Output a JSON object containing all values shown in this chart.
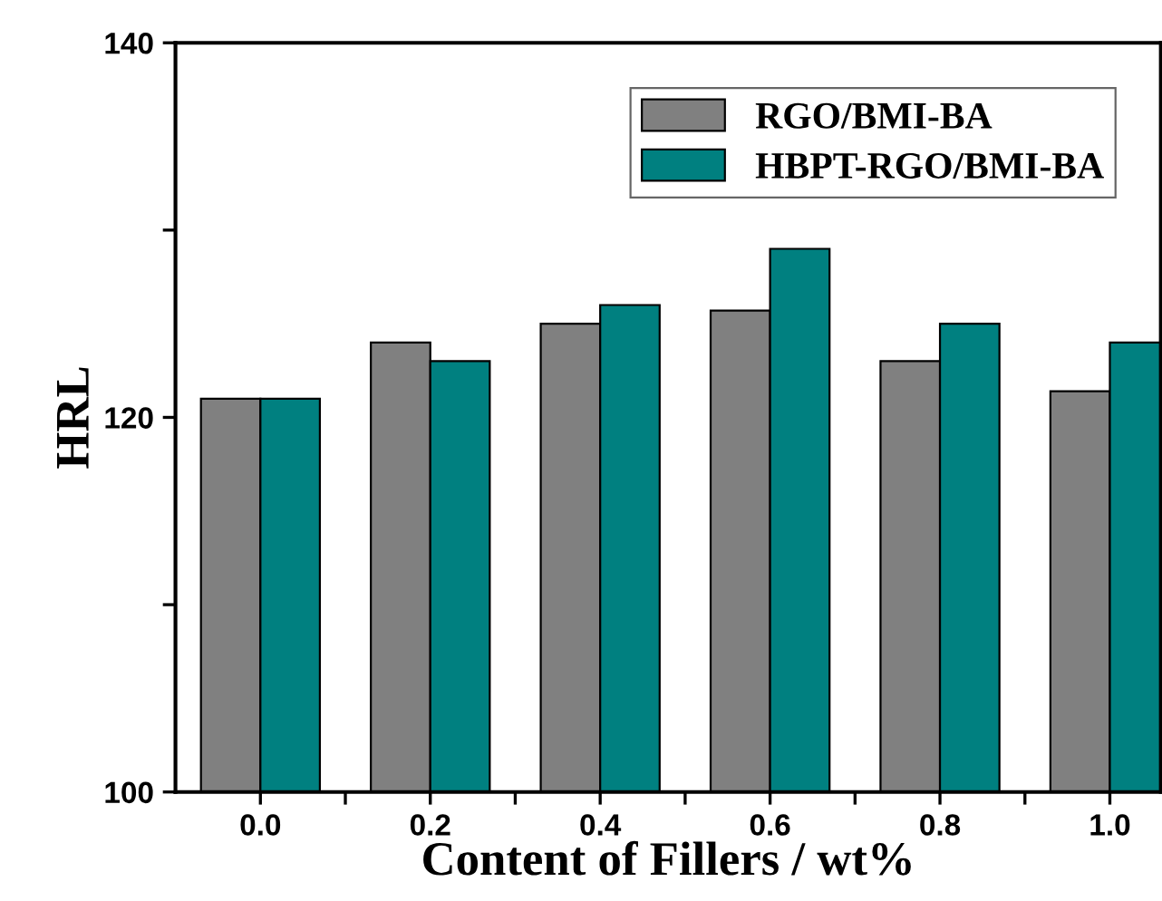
{
  "chart_data": {
    "type": "bar",
    "xlabel": "Content of Fillers / wt%",
    "ylabel": "HRL",
    "x": [
      0.0,
      0.2,
      0.4,
      0.6,
      0.8,
      1.0
    ],
    "series": [
      {
        "name": "RGO/BMI-BA",
        "color": "#808080",
        "values": [
          121,
          124,
          125,
          125.7,
          123,
          121.4
        ]
      },
      {
        "name": "HBPT-RGO/BMI-BA",
        "color": "#008080",
        "values": [
          121,
          123,
          126,
          129,
          125,
          124
        ]
      }
    ],
    "xlim": [
      -0.1,
      1.06
    ],
    "xticks": [
      {
        "value": 0.0,
        "label": "0.0"
      },
      {
        "value": 0.1,
        "label": null
      },
      {
        "value": 0.2,
        "label": "0.2"
      },
      {
        "value": 0.3,
        "label": null
      },
      {
        "value": 0.4,
        "label": "0.4"
      },
      {
        "value": 0.5,
        "label": null
      },
      {
        "value": 0.6,
        "label": "0.6"
      },
      {
        "value": 0.7,
        "label": null
      },
      {
        "value": 0.8,
        "label": "0.8"
      },
      {
        "value": 0.9,
        "label": null
      },
      {
        "value": 1.0,
        "label": "1.0"
      }
    ],
    "ylim": [
      100,
      140
    ],
    "yticks": [
      100,
      {
        "value": 110,
        "label": null
      },
      120,
      {
        "value": 130,
        "label": null
      },
      140
    ],
    "legend": "top right",
    "grid": false
  }
}
